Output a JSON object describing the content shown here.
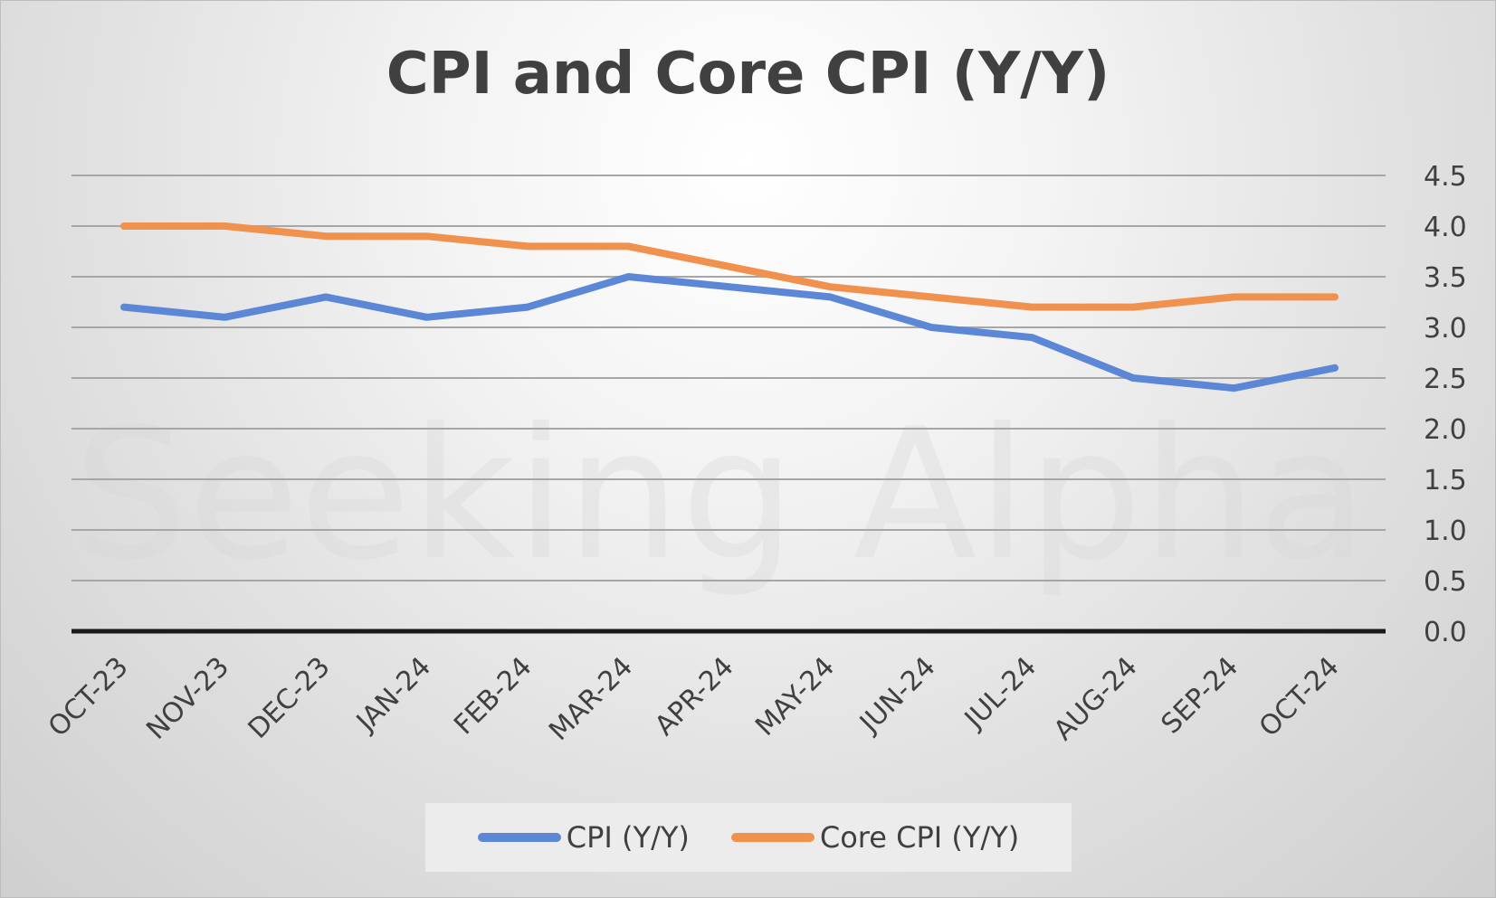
{
  "chart_data": {
    "type": "line",
    "title": "CPI and Core CPI (Y/Y)",
    "watermark": "Seeking Alpha",
    "categories": [
      "OCT-23",
      "NOV-23",
      "DEC-23",
      "JAN-24",
      "FEB-24",
      "MAR-24",
      "APR-24",
      "MAY-24",
      "JUN-24",
      "JUL-24",
      "AUG-24",
      "SEP-24",
      "OCT-24"
    ],
    "series": [
      {
        "name": "CPI (Y/Y)",
        "color": "#5b87d6",
        "values": [
          3.2,
          3.1,
          3.3,
          3.1,
          3.2,
          3.5,
          3.4,
          3.3,
          3.0,
          2.9,
          2.5,
          2.4,
          2.6
        ]
      },
      {
        "name": "Core CPI (Y/Y)",
        "color": "#f0914d",
        "values": [
          4.0,
          4.0,
          3.9,
          3.9,
          3.8,
          3.8,
          3.6,
          3.4,
          3.3,
          3.2,
          3.2,
          3.3,
          3.3
        ]
      }
    ],
    "ylim": [
      0,
      4.5
    ],
    "yticks": [
      "0.0",
      "0.5",
      "1.0",
      "1.5",
      "2.0",
      "2.5",
      "3.0",
      "3.5",
      "4.0",
      "4.5"
    ],
    "y_axis_position": "right",
    "grid": true,
    "legend_position": "bottom"
  }
}
